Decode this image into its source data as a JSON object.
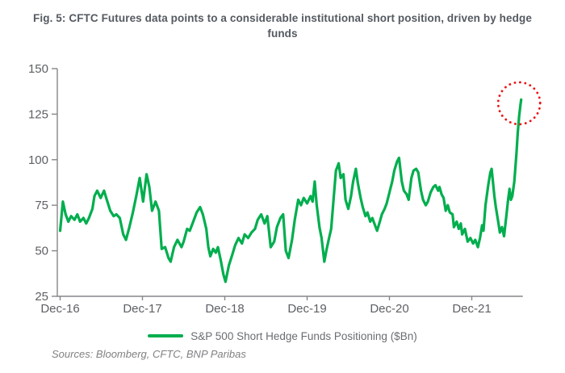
{
  "figure": {
    "title": "Fig. 5: CFTC Futures data points to a considerable institutional short position, driven by hedge funds",
    "source_note": "Sources: Bloomberg, CFTC, BNP Paribas"
  },
  "legend": {
    "series_label": "S&P 500 Short Hedge Funds Positioning ($Bn)"
  },
  "colors": {
    "series_green": "#00ae4e",
    "annotation_red": "#f01212",
    "axis_gray": "#85878a",
    "label_gray": "#5d6064",
    "legend_gray": "#6a6d71",
    "source_gray": "#7f8184",
    "title_gray": "#555a61"
  },
  "chart_data": {
    "type": "line",
    "title": "Fig. 5: CFTC Futures data points to a considerable institutional short position, driven by hedge funds",
    "xlabel": "",
    "ylabel": "",
    "ylim": [
      25,
      150
    ],
    "y_ticks": [
      25,
      50,
      75,
      100,
      125,
      150
    ],
    "x_ticks": [
      {
        "label": "Dec-16",
        "month": 0
      },
      {
        "label": "Dec-17",
        "month": 12
      },
      {
        "label": "Dec-18",
        "month": 24
      },
      {
        "label": "Dec-19",
        "month": 36
      },
      {
        "label": "Dec-20",
        "month": 48
      },
      {
        "label": "Dec-21",
        "month": 60
      }
    ],
    "x_unit": "months since Dec-2016",
    "grid": false,
    "legend_position": "bottom",
    "series": [
      {
        "name": "S&P 500 Short Hedge Funds Positioning ($Bn)",
        "color": "#00ae4e",
        "points": [
          [
            0,
            61
          ],
          [
            0.4,
            77
          ],
          [
            0.8,
            70
          ],
          [
            1.2,
            66
          ],
          [
            1.6,
            69
          ],
          [
            2.1,
            67
          ],
          [
            2.5,
            70
          ],
          [
            2.9,
            66
          ],
          [
            3.4,
            68
          ],
          [
            3.8,
            65
          ],
          [
            4.2,
            68
          ],
          [
            4.7,
            73
          ],
          [
            5.0,
            80
          ],
          [
            5.4,
            83
          ],
          [
            5.9,
            79
          ],
          [
            6.4,
            83
          ],
          [
            6.8,
            78
          ],
          [
            7.3,
            72
          ],
          [
            7.8,
            69
          ],
          [
            8.2,
            70
          ],
          [
            8.7,
            68
          ],
          [
            9.2,
            59
          ],
          [
            9.6,
            56
          ],
          [
            10.1,
            63
          ],
          [
            10.6,
            71
          ],
          [
            11.1,
            80
          ],
          [
            11.6,
            90
          ],
          [
            12.1,
            77
          ],
          [
            12.6,
            92
          ],
          [
            13.0,
            85
          ],
          [
            13.4,
            72
          ],
          [
            13.9,
            77
          ],
          [
            14.4,
            72
          ],
          [
            14.8,
            51
          ],
          [
            15.3,
            52
          ],
          [
            15.8,
            46
          ],
          [
            16.1,
            44
          ],
          [
            16.6,
            52
          ],
          [
            17.1,
            56
          ],
          [
            17.7,
            52
          ],
          [
            18.0,
            55
          ],
          [
            18.5,
            62
          ],
          [
            18.9,
            61
          ],
          [
            19.4,
            66
          ],
          [
            19.9,
            71
          ],
          [
            20.4,
            74
          ],
          [
            20.8,
            70
          ],
          [
            21.3,
            62
          ],
          [
            21.6,
            52
          ],
          [
            21.9,
            47
          ],
          [
            22.3,
            51
          ],
          [
            22.7,
            49
          ],
          [
            23.0,
            52
          ],
          [
            23.4,
            45
          ],
          [
            23.8,
            37
          ],
          [
            24.1,
            33
          ],
          [
            24.6,
            42
          ],
          [
            25.1,
            48
          ],
          [
            25.5,
            53
          ],
          [
            26.0,
            57
          ],
          [
            26.5,
            54
          ],
          [
            26.9,
            59
          ],
          [
            27.4,
            57
          ],
          [
            27.9,
            60
          ],
          [
            28.4,
            62
          ],
          [
            28.8,
            67
          ],
          [
            29.3,
            70
          ],
          [
            29.8,
            65
          ],
          [
            30.2,
            69
          ],
          [
            30.7,
            52
          ],
          [
            31.2,
            55
          ],
          [
            31.6,
            63
          ],
          [
            32.1,
            68
          ],
          [
            32.5,
            70
          ],
          [
            32.9,
            50
          ],
          [
            33.3,
            46
          ],
          [
            33.8,
            56
          ],
          [
            34.2,
            67
          ],
          [
            34.7,
            78
          ],
          [
            35.1,
            75
          ],
          [
            35.5,
            79
          ],
          [
            36.0,
            76
          ],
          [
            36.5,
            80
          ],
          [
            36.8,
            77
          ],
          [
            37.1,
            88
          ],
          [
            37.4,
            75
          ],
          [
            37.8,
            63
          ],
          [
            38.1,
            57
          ],
          [
            38.5,
            44
          ],
          [
            38.8,
            50
          ],
          [
            39.2,
            57
          ],
          [
            39.5,
            62
          ],
          [
            39.9,
            80
          ],
          [
            40.2,
            94
          ],
          [
            40.6,
            98
          ],
          [
            40.9,
            90
          ],
          [
            41.3,
            92
          ],
          [
            41.6,
            78
          ],
          [
            42.0,
            73
          ],
          [
            42.4,
            80
          ],
          [
            42.7,
            88
          ],
          [
            43.1,
            95
          ],
          [
            43.4,
            87
          ],
          [
            43.8,
            79
          ],
          [
            44.1,
            74
          ],
          [
            44.5,
            69
          ],
          [
            44.8,
            71
          ],
          [
            45.2,
            66
          ],
          [
            45.5,
            68
          ],
          [
            45.9,
            64
          ],
          [
            46.2,
            61
          ],
          [
            46.6,
            66
          ],
          [
            46.9,
            70
          ],
          [
            47.3,
            73
          ],
          [
            47.6,
            76
          ],
          [
            48.0,
            82
          ],
          [
            48.4,
            88
          ],
          [
            48.7,
            94
          ],
          [
            49.1,
            99
          ],
          [
            49.4,
            101
          ],
          [
            49.8,
            88
          ],
          [
            50.1,
            83
          ],
          [
            50.5,
            81
          ],
          [
            50.8,
            78
          ],
          [
            51.2,
            90
          ],
          [
            51.5,
            94
          ],
          [
            51.9,
            95
          ],
          [
            52.2,
            93
          ],
          [
            52.6,
            83
          ],
          [
            52.9,
            78
          ],
          [
            53.3,
            75
          ],
          [
            53.6,
            77
          ],
          [
            54.0,
            82
          ],
          [
            54.4,
            85
          ],
          [
            54.7,
            86
          ],
          [
            55.1,
            83
          ],
          [
            55.3,
            85
          ],
          [
            55.6,
            81
          ],
          [
            55.9,
            79
          ],
          [
            56.2,
            72
          ],
          [
            56.5,
            75
          ],
          [
            56.8,
            71
          ],
          [
            57.2,
            70
          ],
          [
            57.4,
            63
          ],
          [
            57.8,
            66
          ],
          [
            58.1,
            62
          ],
          [
            58.4,
            65
          ],
          [
            58.6,
            59
          ],
          [
            59.0,
            62
          ],
          [
            59.4,
            55
          ],
          [
            59.8,
            57
          ],
          [
            60.2,
            54
          ],
          [
            60.5,
            56
          ],
          [
            60.9,
            52
          ],
          [
            61.2,
            57
          ],
          [
            61.5,
            64
          ],
          [
            61.7,
            61
          ],
          [
            62.0,
            75
          ],
          [
            62.4,
            86
          ],
          [
            62.7,
            93
          ],
          [
            62.9,
            95
          ],
          [
            63.3,
            80
          ],
          [
            63.5,
            74
          ],
          [
            63.9,
            65
          ],
          [
            64.1,
            60
          ],
          [
            64.4,
            63
          ],
          [
            64.7,
            58
          ],
          [
            65.1,
            71
          ],
          [
            65.3,
            78
          ],
          [
            65.5,
            84
          ],
          [
            65.7,
            78
          ],
          [
            65.9,
            80
          ],
          [
            66.2,
            88
          ],
          [
            66.5,
            103
          ],
          [
            66.7,
            115
          ],
          [
            66.9,
            124
          ],
          [
            67.1,
            130
          ],
          [
            67.2,
            133
          ]
        ]
      }
    ],
    "annotation": {
      "type": "dotted-circle",
      "color": "#f01212",
      "center_month": 66.9,
      "center_value": 131,
      "radius_px": 26
    }
  }
}
